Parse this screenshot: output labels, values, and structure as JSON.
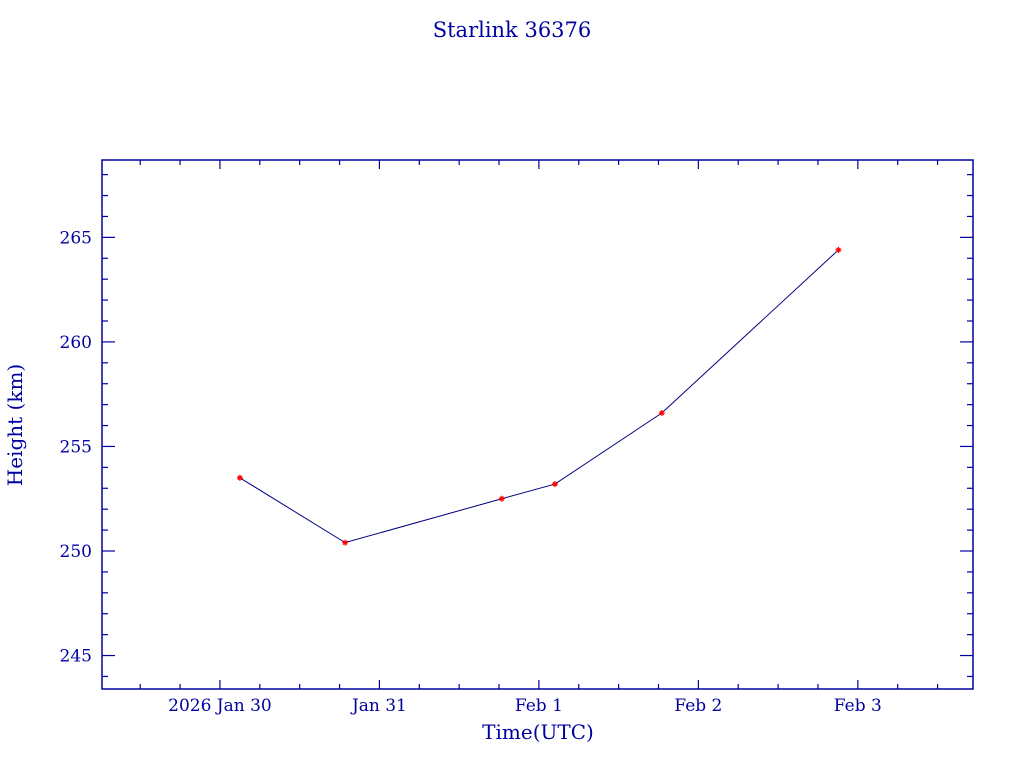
{
  "chart_data": {
    "type": "line",
    "title": "Starlink 36376",
    "xlabel": "Time(UTC)",
    "ylabel": "Height (km)",
    "x_tick_labels": [
      "2026 Jan 30",
      "Jan 31",
      "Feb  1",
      "Feb  2",
      "Feb  3"
    ],
    "x_tick_dates": [
      "2026-01-30T00:00",
      "2026-01-31T00:00",
      "2026-02-01T00:00",
      "2026-02-02T00:00",
      "2026-02-03T00:00"
    ],
    "xlim": [
      "2026-01-29T06:15",
      "2026-02-03T17:20"
    ],
    "ylim": [
      243.4,
      268.7
    ],
    "y_ticks": [
      245,
      250,
      255,
      260,
      265
    ],
    "grid": false,
    "points": [
      {
        "x": "2026-01-30T03:00",
        "y": 253.5
      },
      {
        "x": "2026-01-30T18:50",
        "y": 250.4
      },
      {
        "x": "2026-01-31T18:25",
        "y": 252.5
      },
      {
        "x": "2026-02-01T02:25",
        "y": 253.2
      },
      {
        "x": "2026-02-01T18:30",
        "y": 256.6
      },
      {
        "x": "2026-02-02T21:05",
        "y": 264.4
      }
    ],
    "colors": {
      "axes": "#0000a0",
      "line": "#000080",
      "markers": "#ff0000"
    }
  }
}
